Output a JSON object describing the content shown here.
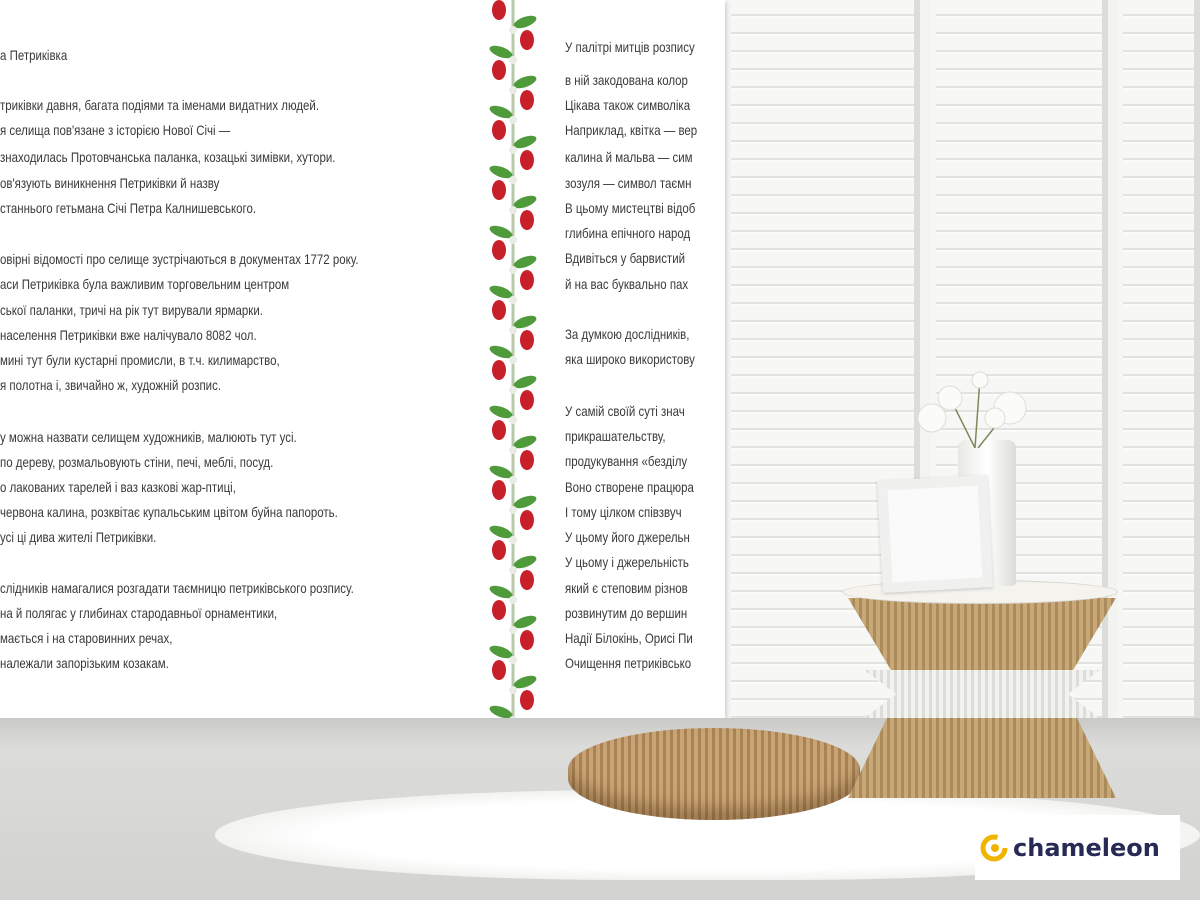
{
  "wallpaper": {
    "left_column": [
      "а Петриківка",
      "",
      "триківки давня, багата подіями та іменами видатних людей.",
      "я селища пов'язане з історією Нової Січі —",
      "знаходилась Протовчанська паланка, козацькі зимівки, хутори.",
      "ов'язують виникнення Петриківки й назву",
      "станнього гетьмана Січі Петра Калнишевського.",
      "",
      "овірні відомості про селище зустрічаються в документах 1772 року.",
      "аси Петриківка була важливим торговельним центром",
      "ської паланки, тричі на рік тут вирували ярмарки.",
      "населення Петриківки вже налічувало 8082 чол.",
      "мині тут були кустарні промисли, в т.ч. килимарство,",
      "я полотна і, звичайно ж, художній розпис.",
      "",
      "у можна назвати селищем художників, малюють тут усі.",
      "по дереву, розмальовують стіни, печі, меблі, посуд.",
      "о лакованих тарелей і ваз казкові жар-птиці,",
      "червона калина, розквітає купальським цвітом буйна папороть.",
      "усі ці дива жителі Петриківки.",
      "",
      "слідників намагалися розгадати таємницю петриківського розпису.",
      "на й полягає у глибинах стародавньої орнаментики,",
      "мається і на старовинних речах,",
      "належали запорізьким козакам."
    ],
    "right_column": [
      "У палітрі митців розпису",
      "в ній закодована колор",
      "Цікава також символіка",
      "Наприклад, квітка — вер",
      "калина й мальва — сим",
      "зозуля — символ таємн",
      "В цьому мистецтві відоб",
      "глибина епічного народ",
      "Вдивіться у барвистий",
      "й на вас буквально пах",
      "",
      "За думкою дослідників,",
      "яка широко використову",
      "",
      "У самій своїй суті знач",
      "прикрашательству,",
      "продукування «безділу",
      "Воно створене працюра",
      "І тому цілком співзвуч",
      "У цьому його джерельн",
      "У цьому і джерельність",
      "який є степовим різнов",
      "розвинутим до вершин",
      "Надії Білокінь, Орисі Пи",
      "Очищення петриківсько"
    ]
  },
  "logo": {
    "text": "chameleon",
    "icon": "chameleon-c-logo",
    "color": "#262a55",
    "accent": "#f0b400"
  },
  "colors": {
    "berry": "#c8202a",
    "leaf": "#4f9a3a"
  }
}
